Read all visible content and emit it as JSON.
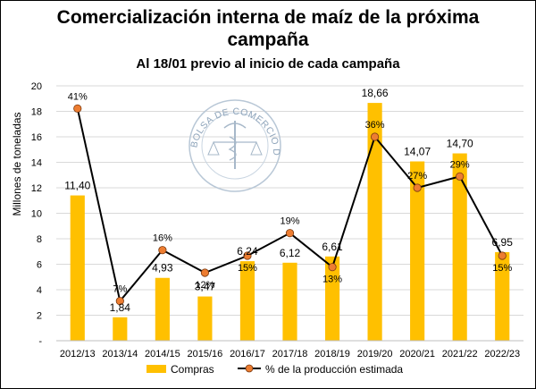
{
  "title_line1": "Comercialización interna de maíz de la próxima",
  "title_line2": "campaña",
  "subtitle": "Al 18/01 previo al inicio de cada campaña",
  "watermark": {
    "text": "BOLSA DE COMERCIO DE ROSARIO",
    "icon": "caduceus-scales-emblem"
  },
  "chart_data": {
    "type": "bar",
    "categories": [
      "2012/13",
      "2013/14",
      "2014/15",
      "2015/16",
      "2016/17",
      "2017/18",
      "2018/19",
      "2019/20",
      "2020/21",
      "2021/22",
      "2022/23"
    ],
    "ylabel": "Millones de toneladas",
    "ylim": [
      0,
      20
    ],
    "yticks": [
      "-",
      "2",
      "4",
      "6",
      "8",
      "10",
      "12",
      "14",
      "16",
      "18",
      "20"
    ],
    "grid": true,
    "legend_position": "bottom",
    "series": [
      {
        "name": "Compras",
        "kind": "bar",
        "color": "#FFC000",
        "values": [
          11.4,
          1.84,
          4.93,
          3.47,
          6.24,
          6.12,
          6.61,
          18.66,
          14.07,
          14.7,
          6.95
        ],
        "labels": [
          "11,40",
          "1,84",
          "4,93",
          "3,47",
          "6,24",
          "6,12",
          "6,61",
          "18,66",
          "14,07",
          "14,70",
          "6,95"
        ]
      },
      {
        "name": "% de la producción estimada",
        "kind": "line",
        "line_color": "#000000",
        "marker_color": "#ED7D31",
        "values": [
          41,
          7,
          16,
          12,
          15,
          19,
          13,
          36,
          27,
          29,
          15
        ],
        "labels": [
          "41%",
          "7%",
          "16%",
          "12%",
          "15%",
          "19%",
          "13%",
          "36%",
          "27%",
          "29%",
          "15%"
        ],
        "secondary_axis_range": [
          0,
          45
        ]
      }
    ]
  }
}
